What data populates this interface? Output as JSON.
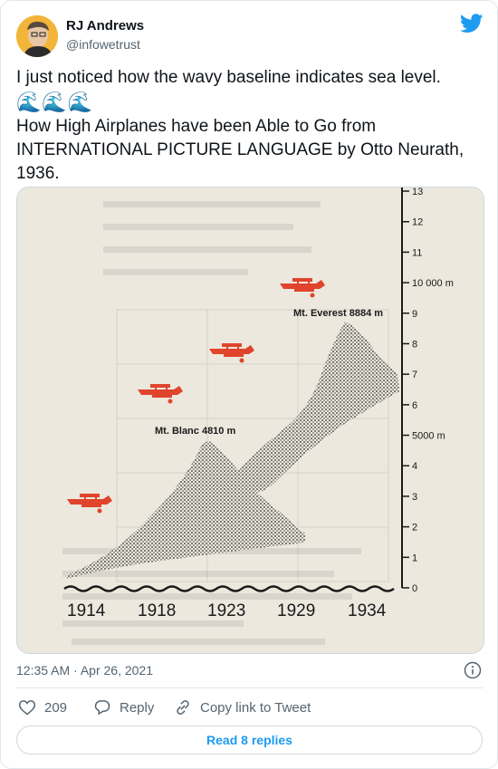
{
  "author": {
    "name": "RJ Andrews",
    "handle": "@infowetrust"
  },
  "tweet": {
    "line1": "I just noticed how the wavy baseline indicates sea level.",
    "waves": "🌊🌊🌊",
    "line2": "How High Airplanes have been Able to Go from INTERNATIONAL PICTURE LANGUAGE by Otto Neurath, 1936."
  },
  "figure": {
    "scale_labels": [
      "13",
      "12",
      "11",
      "10 000 m",
      "9",
      "8",
      "7",
      "6",
      "5000 m",
      "4",
      "3",
      "2",
      "1",
      "0"
    ],
    "peak_labels": {
      "blanc": "Mt. Blanc 4810 m",
      "everest": "Mt. Everest 8884 m"
    },
    "years": [
      "1914",
      "1918",
      "1923",
      "1929",
      "1934"
    ],
    "airplane_color": "#e0442c",
    "mountain_color": "#2a2a2a"
  },
  "meta": {
    "timestamp": "12:35 AM · Apr 26, 2021"
  },
  "actions": {
    "like_count": "209",
    "reply_label": "Reply",
    "copy_label": "Copy link to Tweet"
  },
  "read_replies": "Read 8 replies"
}
